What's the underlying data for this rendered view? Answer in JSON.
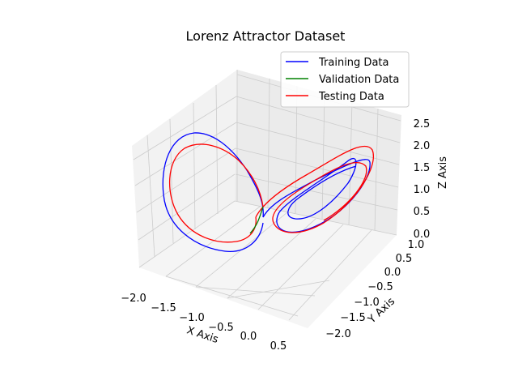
{
  "chart_data": {
    "type": "line",
    "projection": "3d",
    "title": "Lorenz Attractor Dataset",
    "xlabel": "X Axis",
    "ylabel": "Y Axis",
    "zlabel": "Z Axis",
    "xlim": [
      -2.0,
      0.7
    ],
    "ylim": [
      -2.3,
      1.2
    ],
    "zlim": [
      0.0,
      2.6
    ],
    "xticks": [
      "−2.0",
      "−1.5",
      "−1.0",
      "−0.5",
      "0.0",
      "0.5"
    ],
    "yticks": [
      "−2.0",
      "−1.5",
      "−1.0",
      "−0.5",
      "0.0",
      "0.5",
      "1.0"
    ],
    "zticks": [
      "0.0",
      "0.5",
      "1.0",
      "1.5",
      "2.0",
      "2.5"
    ],
    "grid": true,
    "legend_position": "top-right",
    "series": [
      {
        "name": "Training Data",
        "color": "#0000ff"
      },
      {
        "name": "Validation Data",
        "color": "#008000"
      },
      {
        "name": "Testing Data",
        "color": "#ff0000"
      }
    ]
  }
}
